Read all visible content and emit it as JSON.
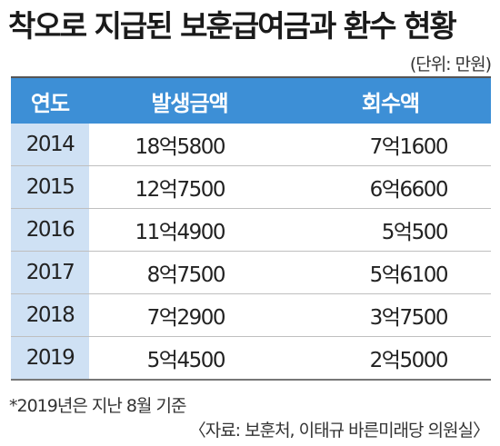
{
  "title": "착오로 지급된 보훈급여금과 환수 현황",
  "unit": "(단위: 만원)",
  "table": {
    "headers": [
      "연도",
      "발생금액",
      "회수액"
    ],
    "rows": [
      {
        "year": "2014",
        "paid": "18억5800",
        "recovered": "7억1600"
      },
      {
        "year": "2015",
        "paid": "12억7500",
        "recovered": "6억6600"
      },
      {
        "year": "2016",
        "paid": "11억4900",
        "recovered": "5억500"
      },
      {
        "year": "2017",
        "paid": "8억7500",
        "recovered": "5억6100"
      },
      {
        "year": "2018",
        "paid": "7억2900",
        "recovered": "3억7500"
      },
      {
        "year": "2019",
        "paid": "5억4500",
        "recovered": "2억5000"
      }
    ]
  },
  "footnote": "*2019년은 지난 8월 기준",
  "source": "〈자료: 보훈처, 이태규 바른미래당 의원실〉",
  "colors": {
    "header": "#3d8fd6",
    "year_column": "#cfe1f4"
  }
}
